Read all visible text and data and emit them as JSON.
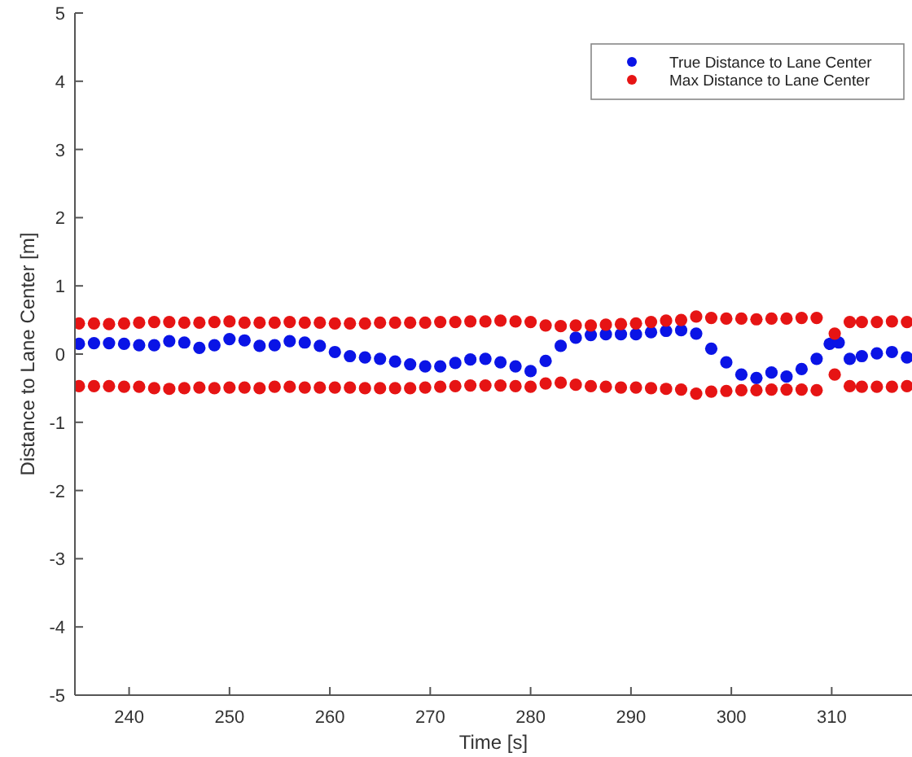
{
  "chart_data": {
    "type": "scatter",
    "xlabel": "Time [s]",
    "ylabel": "Distance to Lane Center [m]",
    "xlim": [
      234.6,
      318
    ],
    "ylim": [
      -5,
      5
    ],
    "xticks": [
      240,
      250,
      260,
      270,
      280,
      290,
      300,
      310
    ],
    "yticks": [
      -5,
      -4,
      -3,
      -2,
      -1,
      0,
      1,
      2,
      3,
      4,
      5
    ],
    "legend": "top right",
    "marker": "circle",
    "grid": false,
    "series": [
      {
        "name": "True Distance to Lane Center",
        "color": "#0a14e6",
        "x": [
          235,
          236.5,
          238,
          239.5,
          241,
          242.5,
          244,
          245.5,
          247,
          248.5,
          250,
          251.5,
          253,
          254.5,
          256,
          257.5,
          259,
          260.5,
          262,
          263.5,
          265,
          266.5,
          268,
          269.5,
          271,
          272.5,
          274,
          275.5,
          277,
          278.5,
          280,
          281.5,
          283,
          284.5,
          286,
          287.5,
          289,
          290.5,
          292,
          293.5,
          295,
          296.5,
          298,
          299.5,
          301,
          302.5,
          304,
          305.5,
          307,
          308.5,
          309.8,
          310.7,
          311.8,
          313,
          314.5,
          316,
          317.5
        ],
        "values": [
          0.15,
          0.16,
          0.16,
          0.15,
          0.13,
          0.13,
          0.19,
          0.17,
          0.09,
          0.13,
          0.22,
          0.2,
          0.12,
          0.13,
          0.19,
          0.17,
          0.12,
          0.03,
          -0.03,
          -0.05,
          -0.07,
          -0.11,
          -0.15,
          -0.18,
          -0.18,
          -0.13,
          -0.08,
          -0.07,
          -0.12,
          -0.18,
          -0.25,
          -0.1,
          0.12,
          0.24,
          0.28,
          0.29,
          0.29,
          0.29,
          0.32,
          0.34,
          0.35,
          0.3,
          0.08,
          -0.12,
          -0.3,
          -0.35,
          -0.27,
          -0.33,
          -0.22,
          -0.07,
          0.15,
          0.17,
          -0.07,
          -0.03,
          0.01,
          0.03,
          -0.05
        ]
      },
      {
        "name": "Max Distance to Lane Center",
        "color": "#e61414",
        "x": [
          235,
          236.5,
          238,
          239.5,
          241,
          242.5,
          244,
          245.5,
          247,
          248.5,
          250,
          251.5,
          253,
          254.5,
          256,
          257.5,
          259,
          260.5,
          262,
          263.5,
          265,
          266.5,
          268,
          269.5,
          271,
          272.5,
          274,
          275.5,
          277,
          278.5,
          280,
          281.5,
          283,
          284.5,
          286,
          287.5,
          289,
          290.5,
          292,
          293.5,
          295,
          296.5,
          298,
          299.5,
          301,
          302.5,
          304,
          305.5,
          307,
          308.5,
          310.3,
          311.8,
          313,
          314.5,
          316,
          317.5,
          235,
          236.5,
          238,
          239.5,
          241,
          242.5,
          244,
          245.5,
          247,
          248.5,
          250,
          251.5,
          253,
          254.5,
          256,
          257.5,
          259,
          260.5,
          262,
          263.5,
          265,
          266.5,
          268,
          269.5,
          271,
          272.5,
          274,
          275.5,
          277,
          278.5,
          280,
          281.5,
          283,
          284.5,
          286,
          287.5,
          289,
          290.5,
          292,
          293.5,
          295,
          296.5,
          298,
          299.5,
          301,
          302.5,
          304,
          305.5,
          307,
          308.5,
          310.3,
          311.8,
          313,
          314.5,
          316,
          317.5
        ],
        "values": [
          0.45,
          0.45,
          0.44,
          0.45,
          0.46,
          0.47,
          0.47,
          0.46,
          0.46,
          0.47,
          0.48,
          0.46,
          0.46,
          0.46,
          0.47,
          0.46,
          0.46,
          0.45,
          0.45,
          0.45,
          0.46,
          0.46,
          0.46,
          0.46,
          0.47,
          0.47,
          0.48,
          0.48,
          0.49,
          0.48,
          0.47,
          0.42,
          0.41,
          0.42,
          0.42,
          0.43,
          0.44,
          0.45,
          0.47,
          0.49,
          0.5,
          0.55,
          0.53,
          0.52,
          0.52,
          0.51,
          0.52,
          0.52,
          0.53,
          0.53,
          0.3,
          0.47,
          0.47,
          0.47,
          0.48,
          0.47,
          -0.47,
          -0.47,
          -0.47,
          -0.48,
          -0.48,
          -0.5,
          -0.51,
          -0.5,
          -0.49,
          -0.5,
          -0.49,
          -0.49,
          -0.5,
          -0.48,
          -0.48,
          -0.49,
          -0.49,
          -0.49,
          -0.49,
          -0.5,
          -0.5,
          -0.5,
          -0.5,
          -0.49,
          -0.48,
          -0.47,
          -0.46,
          -0.46,
          -0.46,
          -0.47,
          -0.48,
          -0.43,
          -0.42,
          -0.45,
          -0.47,
          -0.48,
          -0.49,
          -0.49,
          -0.5,
          -0.51,
          -0.52,
          -0.58,
          -0.55,
          -0.54,
          -0.53,
          -0.53,
          -0.52,
          -0.52,
          -0.52,
          -0.53,
          -0.3,
          -0.47,
          -0.48,
          -0.48,
          -0.48,
          -0.47
        ]
      }
    ]
  }
}
